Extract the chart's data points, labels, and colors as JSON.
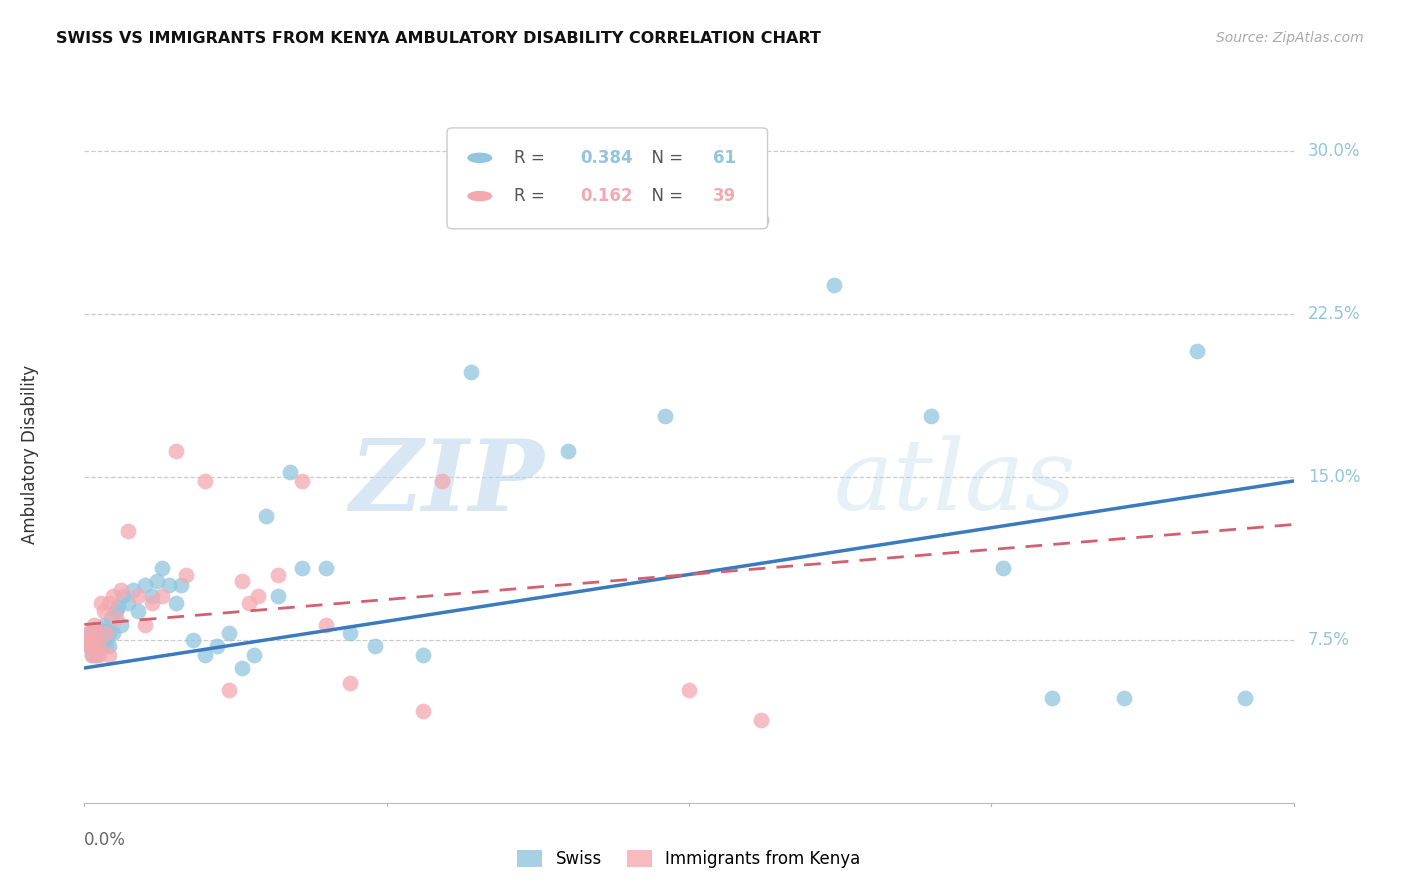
{
  "title": "SWISS VS IMMIGRANTS FROM KENYA AMBULATORY DISABILITY CORRELATION CHART",
  "source": "Source: ZipAtlas.com",
  "ylabel": "Ambulatory Disability",
  "xlim": [
    0.0,
    0.5
  ],
  "ylim": [
    0.0,
    0.32
  ],
  "yticks": [
    0.075,
    0.15,
    0.225,
    0.3
  ],
  "ytick_labels": [
    "7.5%",
    "15.0%",
    "22.5%",
    "30.0%"
  ],
  "swiss_R": "0.384",
  "swiss_N": "61",
  "kenya_R": "0.162",
  "kenya_N": "39",
  "swiss_color": "#92c5de",
  "kenya_color": "#f4a9b0",
  "trend_swiss_color": "#3a7abf",
  "trend_kenya_color": "#d45f6e",
  "swiss_trend_x0": 0.0,
  "swiss_trend_y0": 0.062,
  "swiss_trend_x1": 0.5,
  "swiss_trend_y1": 0.148,
  "kenya_trend_x0": 0.0,
  "kenya_trend_y0": 0.082,
  "kenya_trend_x1": 0.5,
  "kenya_trend_y1": 0.128,
  "swiss_x": [
    0.001,
    0.002,
    0.002,
    0.003,
    0.003,
    0.004,
    0.004,
    0.005,
    0.005,
    0.005,
    0.006,
    0.006,
    0.007,
    0.007,
    0.008,
    0.008,
    0.009,
    0.009,
    0.01,
    0.01,
    0.011,
    0.012,
    0.013,
    0.014,
    0.015,
    0.016,
    0.018,
    0.02,
    0.022,
    0.025,
    0.028,
    0.03,
    0.032,
    0.035,
    0.038,
    0.04,
    0.045,
    0.05,
    0.055,
    0.06,
    0.065,
    0.07,
    0.075,
    0.08,
    0.085,
    0.09,
    0.1,
    0.11,
    0.12,
    0.14,
    0.16,
    0.2,
    0.24,
    0.28,
    0.31,
    0.35,
    0.38,
    0.4,
    0.43,
    0.46,
    0.48
  ],
  "swiss_y": [
    0.075,
    0.072,
    0.078,
    0.068,
    0.075,
    0.072,
    0.08,
    0.068,
    0.075,
    0.073,
    0.077,
    0.08,
    0.073,
    0.078,
    0.075,
    0.082,
    0.073,
    0.079,
    0.078,
    0.072,
    0.085,
    0.078,
    0.088,
    0.09,
    0.082,
    0.095,
    0.092,
    0.098,
    0.088,
    0.1,
    0.095,
    0.102,
    0.108,
    0.1,
    0.092,
    0.1,
    0.075,
    0.068,
    0.072,
    0.078,
    0.062,
    0.068,
    0.132,
    0.095,
    0.152,
    0.108,
    0.108,
    0.078,
    0.072,
    0.068,
    0.198,
    0.162,
    0.178,
    0.268,
    0.238,
    0.178,
    0.108,
    0.048,
    0.048,
    0.208,
    0.048
  ],
  "kenya_x": [
    0.001,
    0.002,
    0.002,
    0.003,
    0.003,
    0.004,
    0.004,
    0.005,
    0.005,
    0.006,
    0.006,
    0.007,
    0.008,
    0.009,
    0.01,
    0.01,
    0.012,
    0.013,
    0.015,
    0.018,
    0.022,
    0.025,
    0.028,
    0.032,
    0.038,
    0.042,
    0.05,
    0.06,
    0.065,
    0.068,
    0.072,
    0.08,
    0.09,
    0.1,
    0.11,
    0.14,
    0.148,
    0.25,
    0.28
  ],
  "kenya_y": [
    0.075,
    0.072,
    0.078,
    0.075,
    0.068,
    0.082,
    0.072,
    0.068,
    0.078,
    0.072,
    0.068,
    0.092,
    0.088,
    0.078,
    0.068,
    0.092,
    0.095,
    0.085,
    0.098,
    0.125,
    0.095,
    0.082,
    0.092,
    0.095,
    0.162,
    0.105,
    0.148,
    0.052,
    0.102,
    0.092,
    0.095,
    0.105,
    0.148,
    0.082,
    0.055,
    0.042,
    0.148,
    0.052,
    0.038
  ]
}
